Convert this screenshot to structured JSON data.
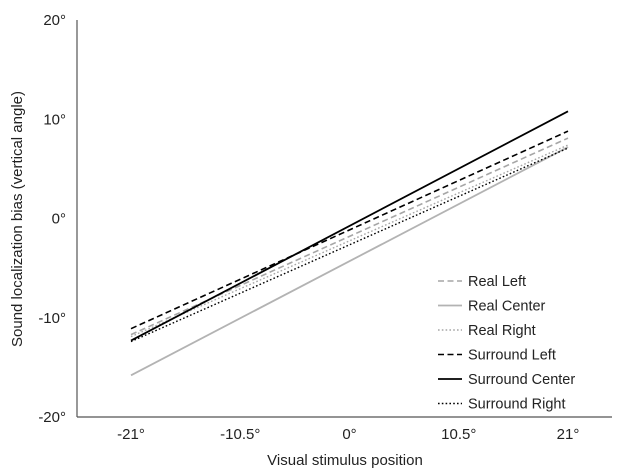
{
  "chart_data": {
    "type": "line",
    "title": "",
    "xlabel": "Visual stimulus position",
    "ylabel": "Sound localization bias (vertical angle)",
    "xlim": [
      -21,
      21
    ],
    "ylim": [
      -20,
      20
    ],
    "x_ticks": [
      -21,
      -10.5,
      0,
      10.5,
      21
    ],
    "x_tick_labels": [
      "-21°",
      "-10.5°",
      "0°",
      "10.5°",
      "21°"
    ],
    "y_ticks": [
      20,
      10,
      0,
      -10,
      -20
    ],
    "y_tick_labels": [
      "20°",
      "10°",
      "0°",
      "-10°",
      "-20°"
    ],
    "grid": false,
    "legend_position": "bottom-right",
    "series": [
      {
        "name": "Real Left",
        "x": [
          -21,
          21
        ],
        "y": [
          -11.7,
          8.1
        ],
        "color": "#a6a6a6",
        "style": "dashed",
        "width": 1.6
      },
      {
        "name": "Real Center",
        "x": [
          -21,
          21
        ],
        "y": [
          -15.8,
          7.2
        ],
        "color": "#b3b3b3",
        "style": "solid",
        "width": 1.8
      },
      {
        "name": "Real Right",
        "x": [
          -21,
          21
        ],
        "y": [
          -11.9,
          7.4
        ],
        "color": "#a6a6a6",
        "style": "dotted",
        "width": 1.4
      },
      {
        "name": "Surround Left",
        "x": [
          -21,
          21
        ],
        "y": [
          -11.1,
          8.8
        ],
        "color": "#000000",
        "style": "dashed",
        "width": 1.6
      },
      {
        "name": "Surround Center",
        "x": [
          -21,
          21
        ],
        "y": [
          -12.3,
          10.8
        ],
        "color": "#000000",
        "style": "solid",
        "width": 1.8
      },
      {
        "name": "Surround Right",
        "x": [
          -21,
          21
        ],
        "y": [
          -12.4,
          7.1
        ],
        "color": "#000000",
        "style": "dotted",
        "width": 1.4
      }
    ]
  }
}
